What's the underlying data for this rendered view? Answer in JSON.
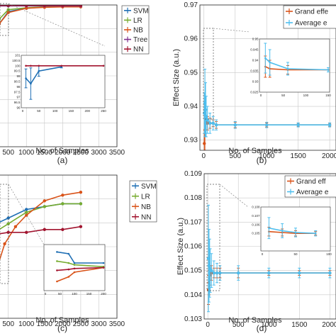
{
  "colors": {
    "svm": "#1f6fb4",
    "lr": "#77ac30",
    "nb": "#d95319",
    "tree": "#7e2f8e",
    "nn": "#a2142f",
    "grand": "#d95319",
    "average": "#4dbeee",
    "axis": "#262626",
    "grid": "#c8c8c8"
  },
  "chart_data": [
    {
      "panel": "(a)",
      "type": "line",
      "xlabel": "No. of Samples",
      "ylabel": "",
      "xlim": [
        0,
        3500
      ],
      "xticks": [
        "500",
        "1000",
        "1500",
        "2000",
        "2500",
        "3000",
        "3500"
      ],
      "ylim": [
        70,
        100
      ],
      "grid": true,
      "legend": [
        "SVM",
        "LR",
        "NB",
        "Tree",
        "NN"
      ],
      "legend_position": "top-right",
      "series": [
        {
          "name": "SVM",
          "x": [
            0,
            60,
            120,
            250,
            500,
            1000,
            1500,
            2000,
            2500
          ],
          "y": [
            80,
            90,
            94,
            96,
            98.6,
            99.3,
            99.6,
            99.7,
            99.7
          ]
        },
        {
          "name": "LR",
          "x": [
            0,
            60,
            120,
            250,
            500,
            1000,
            1500,
            2000,
            2500
          ],
          "y": [
            81,
            91,
            95,
            97,
            99,
            99.4,
            99.6,
            99.7,
            99.7
          ]
        },
        {
          "name": "NB",
          "x": [
            0,
            60,
            120,
            250,
            500,
            1000,
            1500,
            2000,
            2500
          ],
          "y": [
            79,
            88,
            93,
            96,
            98.4,
            99.3,
            99.5,
            99.6,
            99.6
          ]
        },
        {
          "name": "Tree",
          "x": [
            0,
            500,
            1000,
            1500,
            2000,
            2500
          ],
          "y": [
            99.8,
            99.8,
            99.8,
            99.8,
            99.8,
            99.8
          ]
        },
        {
          "name": "NN",
          "x": [
            0,
            500,
            1000,
            1500,
            2000,
            2500
          ],
          "y": [
            99.9,
            99.9,
            99.9,
            99.9,
            99.9,
            99.9
          ]
        }
      ],
      "inset": {
        "xlim": [
          0,
          250
        ],
        "ylim": [
          96,
          101
        ],
        "xticks": [
          "0",
          "50",
          "100",
          "150",
          "200",
          "250"
        ],
        "yticks": [
          "96",
          "96.5",
          "97",
          "97.5",
          "98",
          "98.5",
          "99",
          "99.5",
          "100",
          "100.5",
          "101"
        ],
        "series": [
          {
            "name": "SVM",
            "x": [
              10,
              25,
              50,
              120
            ],
            "y": [
              98.8,
              98.3,
              99.5,
              99.9
            ],
            "err": [
              0.9,
              1.5,
              0.5,
              0.1
            ]
          },
          {
            "name": "NN",
            "x": [
              10,
              25,
              50,
              120,
              250
            ],
            "y": [
              100,
              100,
              100,
              100,
              100
            ],
            "err": [
              0,
              0,
              0,
              0,
              0
            ]
          }
        ]
      }
    },
    {
      "panel": "(b)",
      "type": "line",
      "xlabel": "No. of Samples",
      "ylabel": "Effect Size (a.u.)",
      "xlim": [
        0,
        2100
      ],
      "xticks": [
        "0",
        "500",
        "1000",
        "1500",
        "2000"
      ],
      "ylim": [
        0.927,
        0.97
      ],
      "yticks": [
        "0.93",
        "0.94",
        "0.95",
        "0.96",
        "0.97"
      ],
      "grid": true,
      "legend": [
        "Grand effe",
        "Average e"
      ],
      "legend_position": "top-right",
      "series": [
        {
          "name": "Grand effe",
          "x": [
            10,
            20,
            30,
            40,
            60,
            100,
            150,
            200,
            500,
            1000,
            1500,
            2000
          ],
          "y": [
            0.929,
            0.933,
            0.935,
            0.936,
            0.935,
            0.935,
            0.935,
            0.9345,
            0.9345,
            0.9345,
            0.9345,
            0.9345
          ],
          "err": [
            0.003,
            0.006,
            0.004,
            0.003,
            0.002,
            0.0015,
            0.001,
            0.001,
            0.0008,
            0.0006,
            0.0005,
            0.0005
          ]
        },
        {
          "name": "Average e",
          "x": [
            10,
            20,
            30,
            40,
            60,
            100,
            150,
            200,
            500,
            1000,
            1500,
            2000
          ],
          "y": [
            0.938,
            0.941,
            0.939,
            0.937,
            0.936,
            0.935,
            0.935,
            0.9345,
            0.9345,
            0.9345,
            0.9345,
            0.9345
          ],
          "err": [
            0.006,
            0.01,
            0.008,
            0.006,
            0.004,
            0.003,
            0.002,
            0.0015,
            0.001,
            0.0008,
            0.0006,
            0.0006
          ]
        }
      ],
      "inset": {
        "xlim": [
          0,
          150
        ],
        "ylim": [
          0.925,
          0.95
        ],
        "xticks": [
          "0",
          "50",
          "100",
          "150"
        ],
        "yticks": [
          "0.925",
          "0.93",
          "0.935",
          "0.94",
          "0.945",
          "0.95"
        ],
        "series": [
          {
            "name": "Grand effe",
            "x": [
              10,
              20,
              60,
              150
            ],
            "y": [
              0.937,
              0.936,
              0.9355,
              0.9355
            ],
            "err": [
              0.005,
              0.004,
              0.002,
              0.001
            ]
          },
          {
            "name": "Average e",
            "x": [
              10,
              20,
              60,
              150
            ],
            "y": [
              0.941,
              0.939,
              0.936,
              0.9355
            ],
            "err": [
              0.007,
              0.006,
              0.003,
              0.001
            ]
          }
        ]
      }
    },
    {
      "panel": "(c)",
      "type": "line",
      "xlabel": "No. of Samples",
      "ylabel": "",
      "xlim": [
        0,
        3500
      ],
      "xticks": [
        "500",
        "1000",
        "1500",
        "2000",
        "2500",
        "3000",
        "3500"
      ],
      "ylim": [
        50,
        100
      ],
      "grid": true,
      "legend": [
        "SVM",
        "LR",
        "NB",
        "NN"
      ],
      "legend_position": "top-right",
      "series": [
        {
          "name": "SVM",
          "x": [
            0,
            500,
            1000,
            1500,
            2000,
            2500
          ],
          "y": [
            82,
            85,
            88,
            89,
            90,
            90
          ]
        },
        {
          "name": "LR",
          "x": [
            0,
            500,
            1000,
            1500,
            2000,
            2500
          ],
          "y": [
            79,
            83,
            87,
            89,
            90,
            90
          ]
        },
        {
          "name": "NB",
          "x": [
            0,
            100,
            200,
            400,
            700,
            1000,
            1500,
            2000,
            2500
          ],
          "y": [
            58,
            62,
            68,
            76,
            82,
            86,
            91,
            93,
            94
          ]
        },
        {
          "name": "NN",
          "x": [
            0,
            500,
            1000,
            1500,
            2000,
            2500
          ],
          "y": [
            79,
            80,
            80,
            81,
            81,
            82
          ]
        }
      ],
      "inset": {
        "xlim": [
          0,
          200
        ],
        "ylim": [
          50,
          100
        ],
        "xticks": [
          "0",
          "50",
          "100",
          "150",
          "200"
        ],
        "series": [
          {
            "name": "SVM",
            "x": [
              40,
              80,
              100,
              200
            ],
            "y": [
              92,
              90,
              80,
              80
            ]
          },
          {
            "name": "LR",
            "x": [
              40,
              80,
              100,
              200
            ],
            "y": [
              82,
              80,
              78,
              76
            ]
          },
          {
            "name": "NB",
            "x": [
              40,
              80,
              100,
              200
            ],
            "y": [
              60,
              65,
              70,
              75
            ]
          },
          {
            "name": "NN",
            "x": [
              40,
              80,
              100,
              200
            ],
            "y": [
              72,
              73,
              74,
              75
            ]
          }
        ]
      }
    },
    {
      "panel": "(d)",
      "type": "line",
      "xlabel": "No. of Samples",
      "ylabel": "Effect Size (a.u.)",
      "xlim": [
        0,
        2100
      ],
      "xticks": [
        "0",
        "500",
        "1000",
        "1500",
        "2000"
      ],
      "ylim": [
        0.103,
        0.109
      ],
      "yticks": [
        "0.103",
        "0.104",
        "0.105",
        "0.106",
        "0.107",
        "0.108",
        "0.109"
      ],
      "grid": true,
      "legend": [
        "Grand eff",
        "Average e"
      ],
      "legend_position": "top-right",
      "series": [
        {
          "name": "Grand eff",
          "x": [
            10,
            20,
            30,
            40,
            60,
            100,
            150,
            200,
            500,
            1000,
            1500,
            2000
          ],
          "y": [
            0.1042,
            0.1045,
            0.1048,
            0.1049,
            0.1049,
            0.1049,
            0.1049,
            0.1049,
            0.1049,
            0.1049,
            0.1049,
            0.1049
          ],
          "err": [
            0.0006,
            0.0005,
            0.0004,
            0.0003,
            0.0003,
            0.0002,
            0.0002,
            0.0002,
            0.0002,
            0.0001,
            0.0001,
            0.0001
          ]
        },
        {
          "name": "Average e",
          "x": [
            10,
            20,
            30,
            40,
            60,
            100,
            150,
            200,
            500,
            1000,
            1500,
            2000
          ],
          "y": [
            0.1055,
            0.1052,
            0.1051,
            0.105,
            0.105,
            0.1049,
            0.1049,
            0.1049,
            0.1049,
            0.1049,
            0.1049,
            0.1049
          ],
          "err": [
            0.0022,
            0.0015,
            0.0012,
            0.0009,
            0.0007,
            0.0005,
            0.0004,
            0.0003,
            0.0003,
            0.0002,
            0.0002,
            0.0002
          ]
        }
      ],
      "inset": {
        "xlim": [
          0,
          100
        ],
        "ylim": [
          0.103,
          0.108
        ],
        "xticks": [
          "0",
          "50",
          "100"
        ],
        "yticks": [
          "0.105",
          "0.106",
          "0.107",
          "0.108"
        ],
        "series": [
          {
            "name": "Grand eff",
            "x": [
              10,
              30,
              50,
              80
            ],
            "y": [
              0.1052,
              0.1051,
              0.105,
              0.105
            ],
            "err": [
              0.0005,
              0.0004,
              0.0003,
              0.0002
            ]
          },
          {
            "name": "Average e",
            "x": [
              10,
              30,
              50,
              80
            ],
            "y": [
              0.1056,
              0.1053,
              0.1051,
              0.105
            ],
            "err": [
              0.0012,
              0.0008,
              0.0005,
              0.0003
            ]
          }
        ]
      }
    }
  ]
}
